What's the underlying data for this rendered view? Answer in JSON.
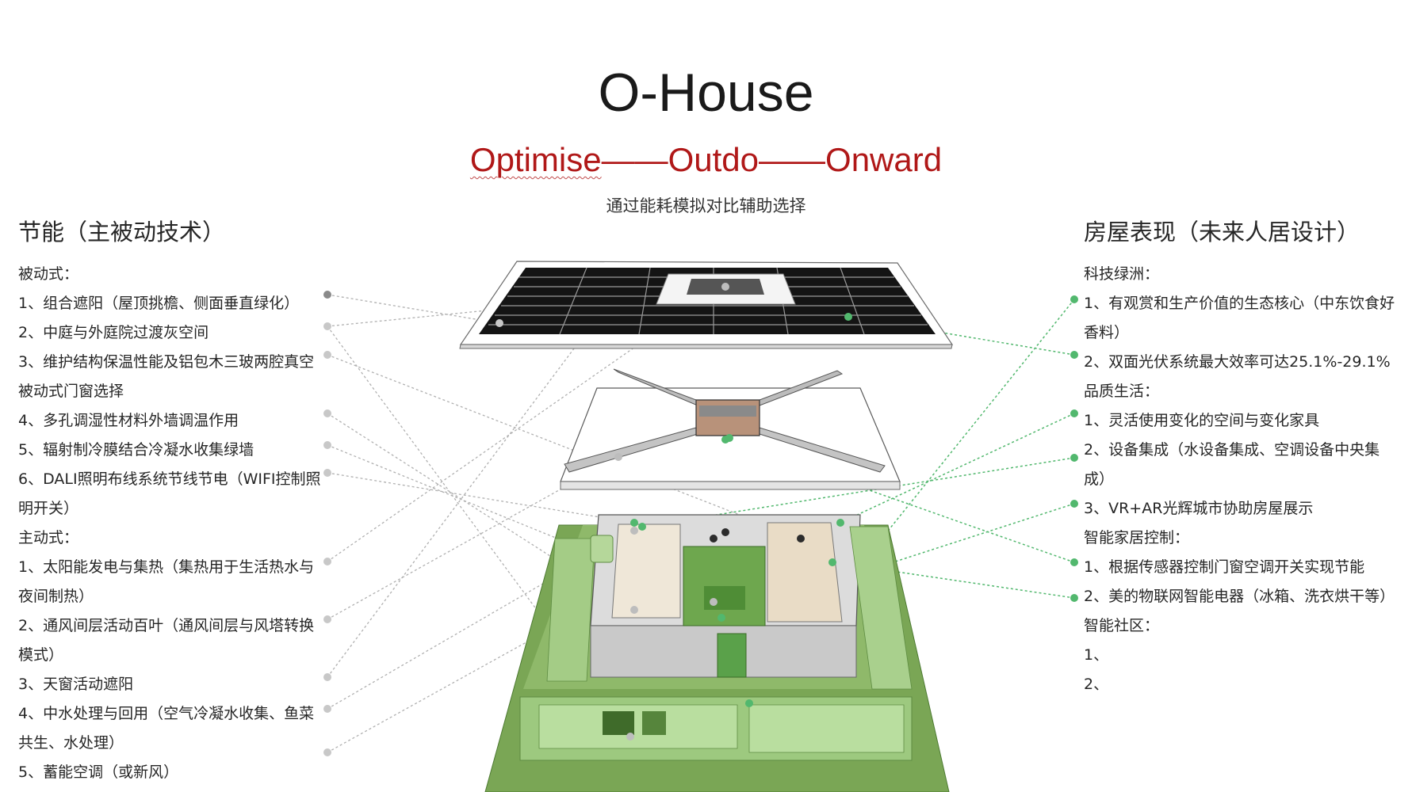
{
  "title": "O-House",
  "tagline": {
    "w1": "Optimise",
    "w2": "Outdo",
    "w3": "Onward",
    "dash": "——"
  },
  "subtitle": "通过能耗模拟对比辅助选择",
  "left": {
    "heading": "节能（主被动技术）",
    "passive_label": "被动式：",
    "passive": [
      "1、组合遮阳（屋顶挑檐、侧面垂直绿化）",
      "2、中庭与外庭院过渡灰空间",
      "3、维护结构保温性能及铝包木三玻两腔真空被动式门窗选择",
      "4、多孔调湿性材料外墙调温作用",
      "5、辐射制冷膜结合冷凝水收集绿墙",
      "6、DALI照明布线系统节线节电（WIFI控制照明开关）"
    ],
    "active_label": "主动式：",
    "active": [
      "1、太阳能发电与集热（集热用于生活热水与夜间制热）",
      "2、通风间层活动百叶（通风间层与风塔转换模式）",
      "3、天窗活动遮阳",
      "4、中水处理与回用（空气冷凝水收集、鱼菜共生、水处理）",
      "5、蓄能空调（或新风）"
    ]
  },
  "right": {
    "heading": "房屋表现（未来人居设计）",
    "groups": [
      {
        "label": "科技绿洲：",
        "items": [
          "1、有观赏和生产价值的生态核心（中东饮食好香料）",
          "2、双面光伏系统最大效率可达25.1%-29.1%"
        ]
      },
      {
        "label": "品质生活：",
        "items": [
          "1、灵活使用变化的空间与变化家具",
          "2、设备集成（水设备集成、空调设备中央集成）",
          "3、VR+AR光辉城市协助房屋展示"
        ]
      },
      {
        "label": "智能家居控制：",
        "items": [
          "1、根据传感器控制门窗空调开关实现节能",
          "2、美的物联网智能电器（冰箱、洗衣烘干等）"
        ]
      },
      {
        "label": "智能社区：",
        "items": [
          "1、",
          "2、"
        ]
      }
    ]
  },
  "colors": {
    "title": "#1a1a1a",
    "tagline": "#b01818",
    "leader_gray": "#a8a8a8",
    "leader_green": "#52b86e",
    "grass": "#7aa655",
    "solar": "#111111"
  }
}
